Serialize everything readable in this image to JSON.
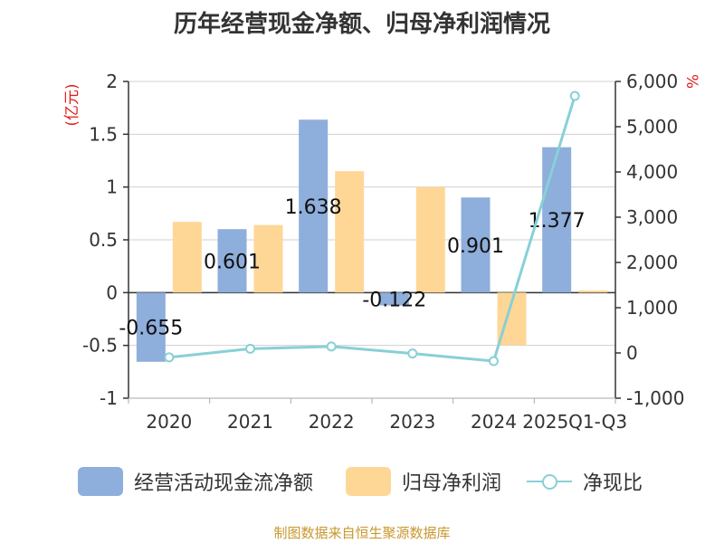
{
  "title": "历年经营现金净额、归母净利润情况",
  "source": "制图数据来自恒生聚源数据库",
  "colors": {
    "cash_flow": "#8eaedb",
    "net_profit": "#fed797",
    "ratio": "#88d0d6",
    "axis_unit": "#e02020",
    "source": "#c9972e"
  },
  "chart_data": {
    "type": "bar",
    "title": "历年经营现金净额、归母净利润情况",
    "categories": [
      "2020",
      "2021",
      "2022",
      "2023",
      "2024",
      "2025Q1-Q3"
    ],
    "left_axis": {
      "unit_label": "(亿元)",
      "ylim": [
        -1,
        2
      ],
      "ticks": [
        -1,
        -0.5,
        0,
        0.5,
        1,
        1.5,
        2
      ],
      "tick_labels": [
        "-1",
        "-0.5",
        "0",
        "0.5",
        "1",
        "1.5",
        "2"
      ]
    },
    "right_axis": {
      "unit_label": "%",
      "ylim": [
        -1000,
        6000
      ],
      "ticks": [
        -1000,
        0,
        1000,
        2000,
        3000,
        4000,
        5000,
        6000
      ],
      "tick_labels": [
        "-1,000",
        "0",
        "1,000",
        "2,000",
        "3,000",
        "4,000",
        "5,000",
        "6,000"
      ]
    },
    "series": [
      {
        "name": "经营活动现金流净额",
        "kind": "bar",
        "axis": "left",
        "values": [
          -0.655,
          0.601,
          1.638,
          -0.122,
          0.901,
          1.377
        ],
        "labels": [
          "-0.655",
          "0.601",
          "1.638",
          "-0.122",
          "0.901",
          "1.377"
        ]
      },
      {
        "name": "归母净利润",
        "kind": "bar",
        "axis": "left",
        "values": [
          0.67,
          0.64,
          1.15,
          1.0,
          -0.5,
          0.02
        ]
      },
      {
        "name": "净现比",
        "kind": "line",
        "axis": "right",
        "values": [
          -97,
          93,
          142,
          -12,
          -180,
          5680
        ]
      }
    ]
  }
}
